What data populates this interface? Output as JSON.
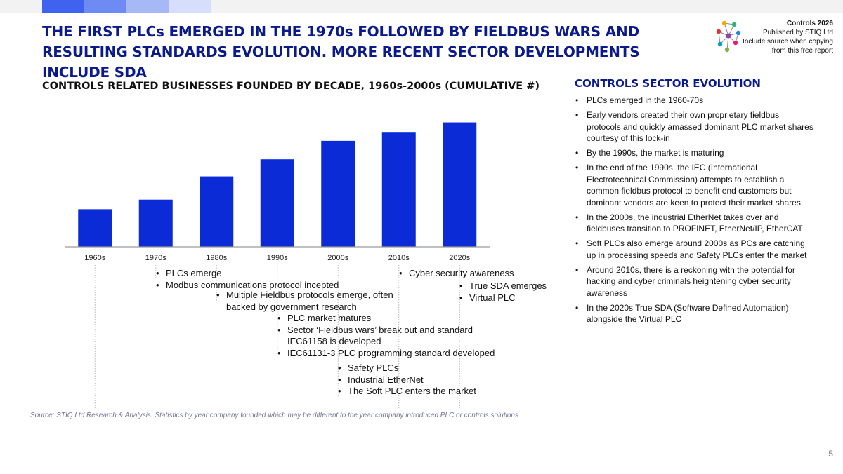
{
  "header": {
    "title": "THE FIRST PLCs EMERGED IN THE 1970s FOLLOWED BY FIELDBUS WARS AND RESULTING STANDARDS EVOLUTION. MORE RECENT SECTOR DEVELOPMENTS INCLUDE SDA",
    "bar_colors": [
      "#3f63f0",
      "#6e8af3",
      "#a7b8f7",
      "#d6defb"
    ]
  },
  "brand": {
    "line1": "Controls 2026",
    "line2": "Published by STIQ Ltd",
    "line3": "Include source when copying",
    "line4": "from this free report"
  },
  "chart_data": {
    "type": "bar",
    "title": "CONTROLS RELATED BUSINESSES FOUNDED BY DECADE, 1960s-2000s (CUMULATIVE  #)",
    "categories": [
      "1960s",
      "1970s",
      "1980s",
      "1990s",
      "2000s",
      "2010s",
      "2020s"
    ],
    "values": [
      55,
      69,
      103,
      128,
      155,
      168,
      182
    ],
    "ylim": [
      0,
      200
    ],
    "color": "#0a2bd6",
    "grid": false,
    "legend": "none"
  },
  "annotations": [
    {
      "items": [
        "PLCs emerge",
        "Modbus communications protocol incepted"
      ]
    },
    {
      "items": [
        "Multiple Fieldbus protocols emerge, often backed by government research"
      ]
    },
    {
      "items": [
        "PLC market matures",
        "Sector ‘Fieldbus wars’ break out and standard IEC61158 is developed",
        "IEC61131-3 PLC programming standard developed"
      ]
    },
    {
      "items": [
        "Safety PLCs",
        "Industrial EtherNet",
        "The Soft PLC enters the market"
      ]
    },
    {
      "items": [
        "Cyber security awareness"
      ]
    },
    {
      "items": [
        "True SDA emerges",
        "Virtual PLC"
      ]
    }
  ],
  "source": "Source: STIQ Ltd Research & Analysis. Statistics by year company founded which may be different to the year company introduced PLC or controls solutions",
  "panel": {
    "title": "CONTROLS SECTOR EVOLUTION",
    "items": [
      "PLCs emerged in the 1960-70s",
      "Early vendors created their own proprietary fieldbus protocols and quickly amassed dominant PLC market shares courtesy of this lock-in",
      "By the 1990s, the market is maturing",
      "In the end of the 1990s, the IEC (International Electrotechnical Commission) attempts to establish a common fieldbus protocol to benefit end customers but dominant vendors are keen to protect their market shares",
      "In the 2000s, the industrial EtherNet takes over and fieldbuses transition to PROFINET, EtherNet/IP, EtherCAT",
      "Soft PLCs also emerge around 2000s as PCs are catching up in processing speeds and Safety PLCs enter the market",
      "Around 2010s, there is a reckoning with the potential for hacking and cyber criminals heightening cyber security awareness",
      "In the 2020s True SDA (Software Defined Automation) alongside the Virtual PLC"
    ]
  },
  "page_number": "5"
}
